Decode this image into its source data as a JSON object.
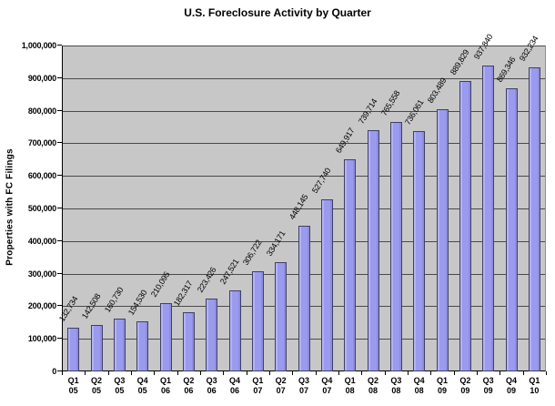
{
  "title": "U.S. Foreclosure Activity by Quarter",
  "ylabel": "Properties with FC Filings",
  "chart_data": {
    "type": "bar",
    "title": "U.S. Foreclosure Activity by Quarter",
    "xlabel": "",
    "ylabel": "Properties with FC Filings",
    "categories": [
      "Q1 05",
      "Q2 05",
      "Q3 05",
      "Q4 05",
      "Q1 06",
      "Q2 06",
      "Q3 06",
      "Q4 06",
      "Q1 07",
      "Q2 07",
      "Q3 07",
      "Q4 07",
      "Q1 08",
      "Q2 08",
      "Q3 08",
      "Q4 08",
      "Q1 09",
      "Q2 09",
      "Q3 09",
      "Q4 09",
      "Q1 10"
    ],
    "values": [
      132734,
      142508,
      160730,
      154530,
      210095,
      182317,
      223426,
      247521,
      306722,
      334171,
      448145,
      527740,
      649917,
      739714,
      765558,
      736061,
      803489,
      889829,
      937840,
      869346,
      932234
    ],
    "bar_labels": [
      "132,734",
      "142,508",
      "160,730",
      "154,530",
      "210,095",
      "182,317",
      "223,426",
      "247,521",
      "306,722",
      "334,171",
      "448,145",
      "527,740",
      "649,917",
      "739,714",
      "765,558",
      "736,061",
      "803,489",
      "889,829",
      "937,840",
      "869,346",
      "932,234"
    ],
    "ylim": [
      0,
      1000000
    ],
    "ytick_step": 100000,
    "ytick_labels": [
      "0",
      "100,000",
      "200,000",
      "300,000",
      "400,000",
      "500,000",
      "600,000",
      "700,000",
      "800,000",
      "900,000",
      "1,000,000"
    ],
    "grid": true,
    "legend": false,
    "colors": {
      "bar_fill": "#9a9aef",
      "bar_border": "#3f3f66",
      "plot_background": "#c7c7c7",
      "gridline": "#4a4a4a",
      "axis": "#000000",
      "text": "#000000",
      "page_background": "#ffffff"
    }
  }
}
